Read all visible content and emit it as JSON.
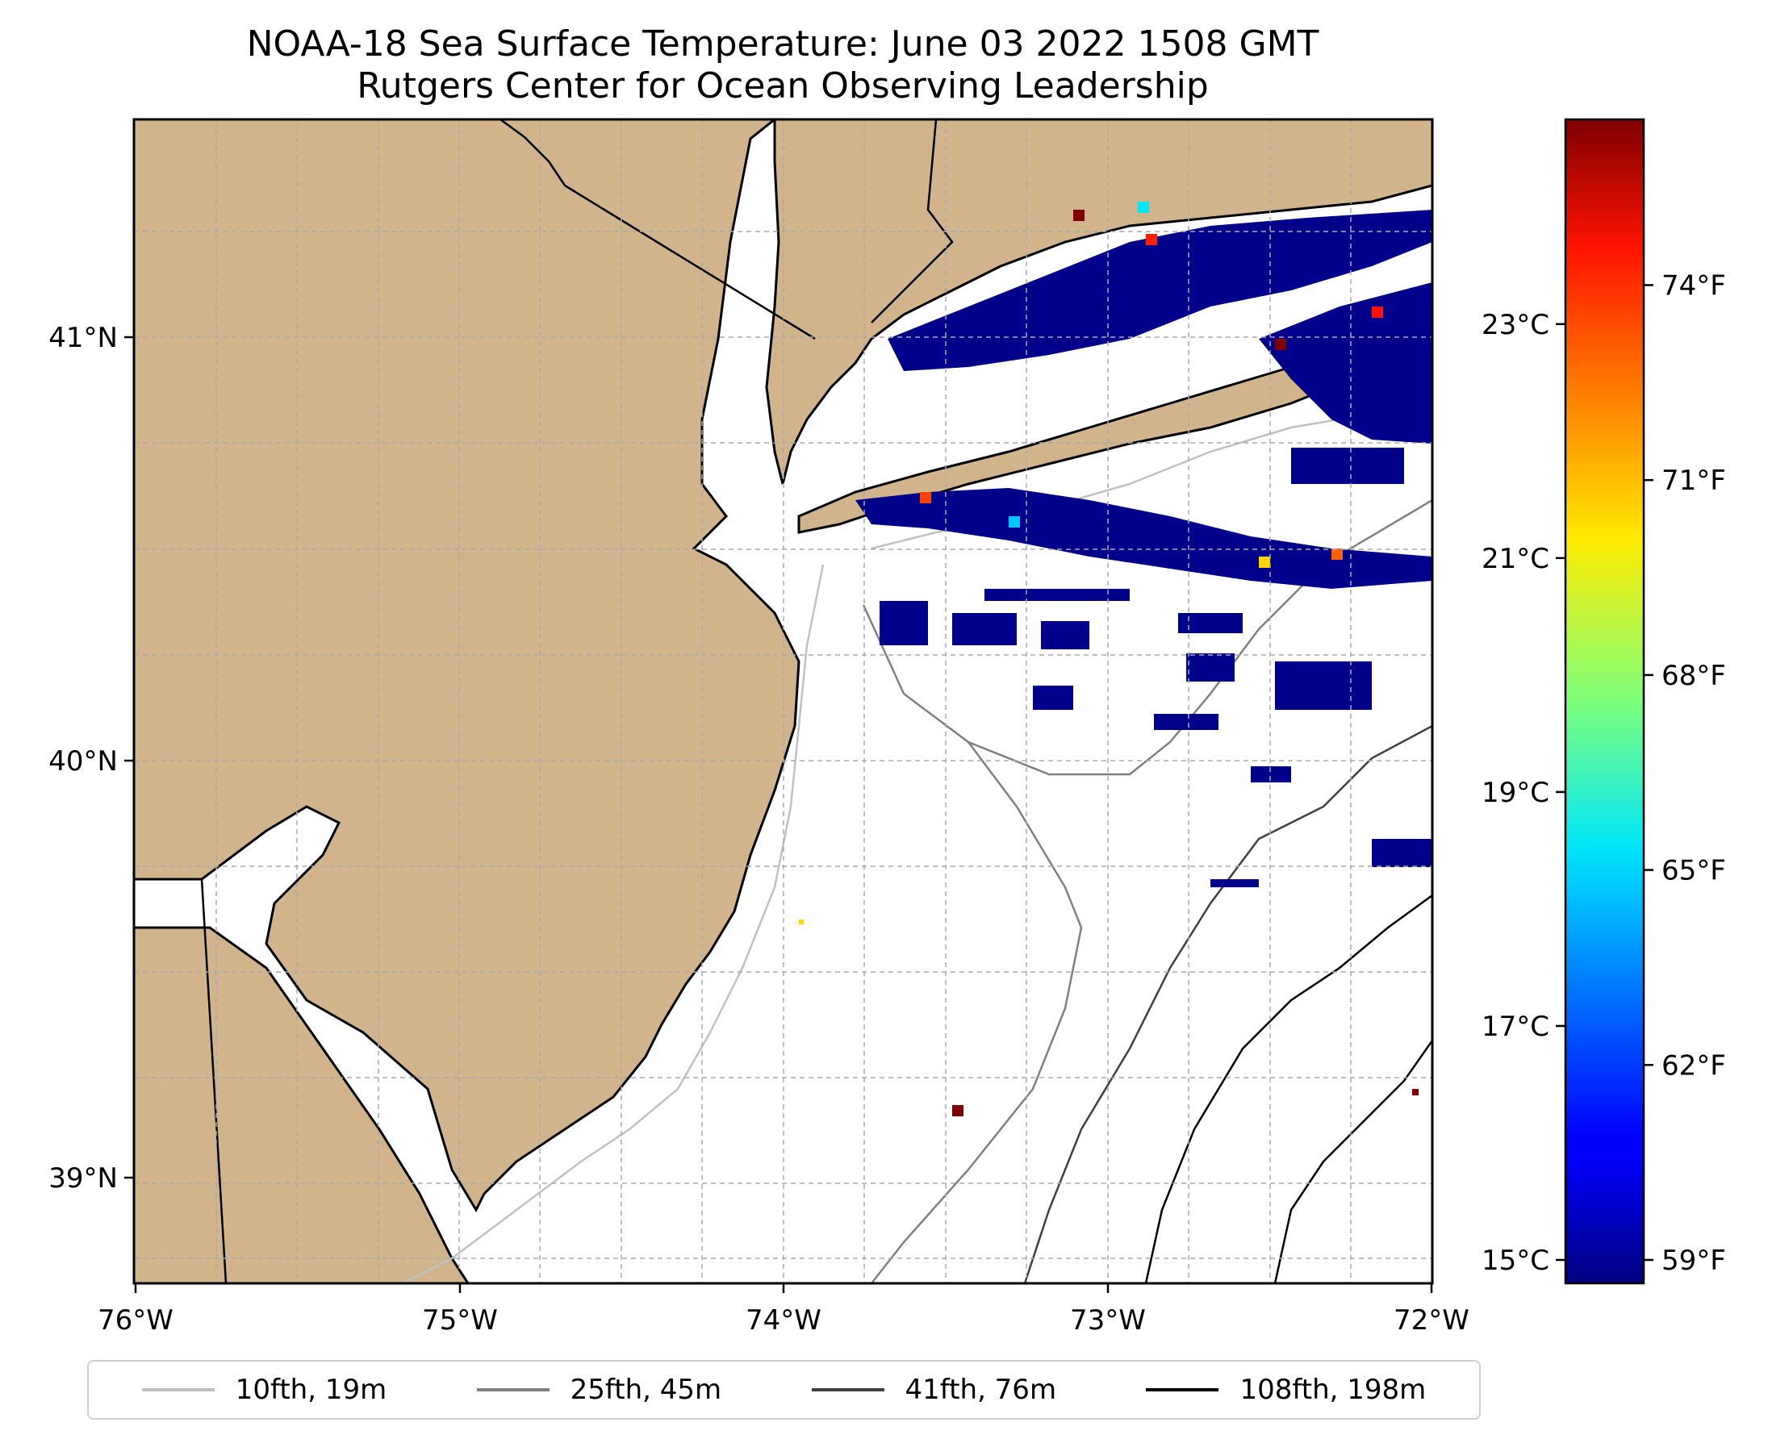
{
  "title": {
    "line1": "NOAA-18 Sea Surface Temperature: June 03 2022 1508 GMT",
    "line2": "Rutgers Center for Ocean Observing Leadership"
  },
  "map": {
    "lon_range": [
      -76,
      -72
    ],
    "lat_range": [
      38.75,
      41.55
    ],
    "lon_ticks": [
      "76°W",
      "75°W",
      "74°W",
      "73°W",
      "72°W"
    ],
    "lat_ticks": [
      "41°N",
      "40°N",
      "39°N"
    ],
    "land_color": "#d2b48c",
    "ocean_color": "#ffffff",
    "grid": "dashed",
    "features": [
      "New Jersey",
      "Long Island",
      "Delaware Bay",
      "Hudson River",
      "shelf isobaths",
      "SST patches"
    ]
  },
  "colorbar": {
    "colormap": "jet",
    "celsius_labels": [
      "23°C",
      "21°C",
      "19°C",
      "17°C",
      "15°C"
    ],
    "fahrenheit_labels": [
      "74°F",
      "71°F",
      "68°F",
      "65°F",
      "62°F",
      "59°F"
    ],
    "celsius_values": [
      23,
      21,
      19,
      17,
      15
    ],
    "range_c": [
      14.8,
      24.75
    ]
  },
  "legend": {
    "items": [
      {
        "label": "10fth, 19m",
        "color": "#c0c0c0"
      },
      {
        "label": "25fth, 45m",
        "color": "#808080"
      },
      {
        "label": "41fth, 76m",
        "color": "#404040"
      },
      {
        "label": "108fth, 198m",
        "color": "#000000"
      }
    ]
  }
}
